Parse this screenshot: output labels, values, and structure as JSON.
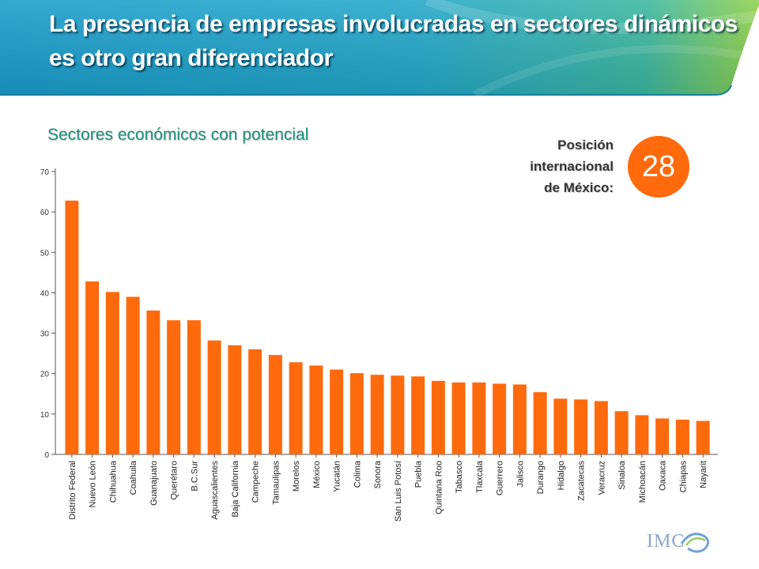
{
  "header": {
    "title_line1": "La presencia de empresas involucradas en sectores dinámicos",
    "title_line2": "es otro gran diferenciador",
    "bg_color": "#1fa0c8"
  },
  "subtitle": "Sectores económicos con potencial",
  "ranking": {
    "line1": "Posición",
    "line2": "internacional",
    "line3": "de México:",
    "value": "28",
    "badge_color": "#ff6a0d"
  },
  "logo": {
    "text": "IMC"
  },
  "chart_data": {
    "type": "bar",
    "bar_color": "#ff6a0d",
    "categories": [
      "Distrito Federal",
      "Nuevo León",
      "Chihuahua",
      "Coahuila",
      "Guanajuato",
      "Querétaro",
      "B.C.Sur",
      "Aguascalientes",
      "Baja California",
      "Campeche",
      "Tamaulipas",
      "Morelos",
      "México",
      "Yucatán",
      "Colima",
      "Sonora",
      "San Luis Potosí",
      "Puebla",
      "Quintana Roo",
      "Tabasco",
      "Tlaxcala",
      "Guerrero",
      "Jalisco",
      "Durango",
      "Hidalgo",
      "Zacatecas",
      "Veracruz",
      "Sinaloa",
      "Michoacán",
      "Oaxaca",
      "Chiapas",
      "Nayarit"
    ],
    "values": [
      62.8,
      42.8,
      40.2,
      39.0,
      35.6,
      33.2,
      33.2,
      28.2,
      27.0,
      26.0,
      24.6,
      22.8,
      22.0,
      21.0,
      20.1,
      19.7,
      19.5,
      19.3,
      18.2,
      17.8,
      17.8,
      17.5,
      17.3,
      15.4,
      13.8,
      13.6,
      13.2,
      10.7,
      9.7,
      8.9,
      8.6,
      8.3
    ],
    "yticks": [
      0,
      10,
      20,
      30,
      40,
      50,
      60,
      70
    ],
    "ylim": [
      0,
      70
    ],
    "grid": false
  }
}
